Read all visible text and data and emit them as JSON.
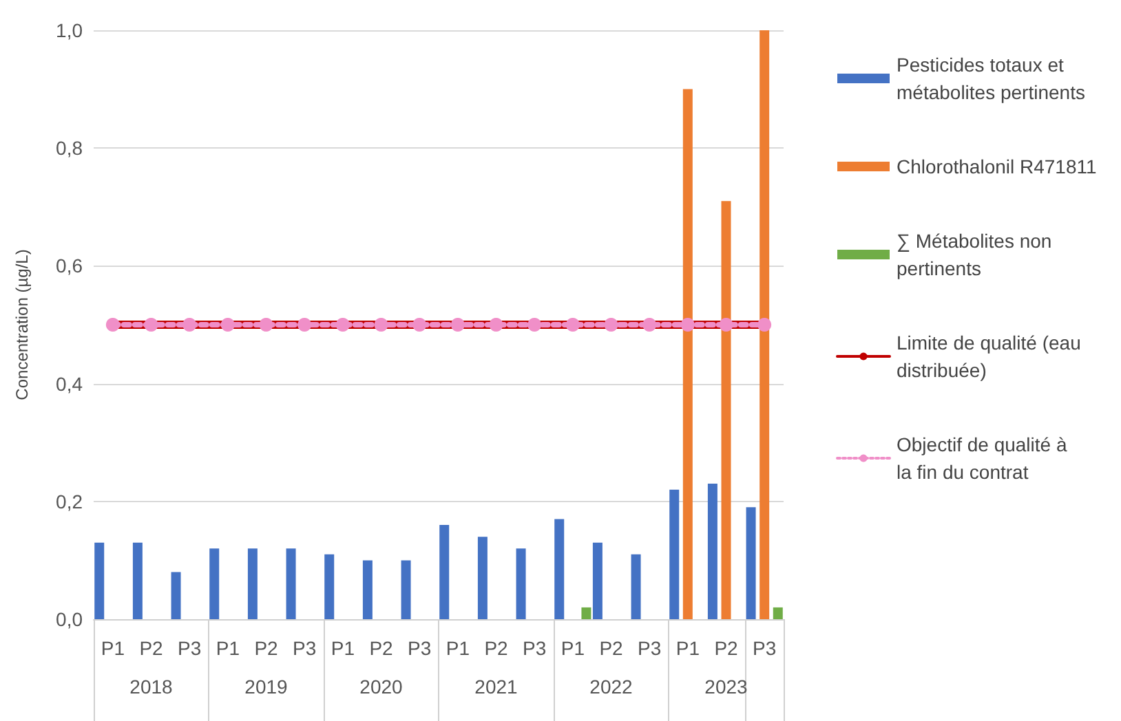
{
  "chart_data": {
    "type": "bar",
    "ylabel": "Concentration (µg/L)",
    "categories": [
      "P1",
      "P2",
      "P3",
      "P1",
      "P2",
      "P3",
      "P1",
      "P2",
      "P3",
      "P1",
      "P2",
      "P3",
      "P1",
      "P2",
      "P3",
      "P1",
      "P2",
      "P3"
    ],
    "annotations": [
      "2018",
      "2019",
      "2020",
      "2021",
      "2022",
      "2023"
    ],
    "series": [
      {
        "name": "Pesticides totaux et métabolites pertinents",
        "color": "#4472c4",
        "values": [
          0.13,
          0.13,
          0.08,
          0.12,
          0.12,
          0.12,
          0.11,
          0.1,
          0.1,
          0.16,
          0.14,
          0.12,
          0.17,
          0.13,
          0.11,
          0.22,
          0.23,
          0.19
        ]
      },
      {
        "name": "Chlorothalonil R471811",
        "color": "#ed7d31",
        "values": [
          null,
          null,
          null,
          null,
          null,
          null,
          null,
          null,
          null,
          null,
          null,
          null,
          null,
          null,
          null,
          0.9,
          0.71,
          1.0
        ]
      },
      {
        "name": "∑ Métabolites non pertinents",
        "color": "#70ad47",
        "values": [
          null,
          null,
          null,
          null,
          null,
          null,
          null,
          null,
          null,
          null,
          null,
          null,
          0.02,
          null,
          null,
          null,
          null,
          0.02
        ]
      },
      {
        "name": "Limite de qualité (eau distribuée)",
        "type": "line",
        "color": "#c00000",
        "line_style": "solid",
        "marker": "none",
        "values": [
          0.5,
          0.5,
          0.5,
          0.5,
          0.5,
          0.5,
          0.5,
          0.5,
          0.5,
          0.5,
          0.5,
          0.5,
          0.5,
          0.5,
          0.5,
          0.5,
          0.5,
          0.5
        ]
      },
      {
        "name": "Objectif de qualité à la fin du contrat",
        "type": "line",
        "color": "#f08fc8",
        "line_style": "dotted",
        "marker": "circle",
        "values": [
          0.5,
          0.5,
          0.5,
          0.5,
          0.5,
          0.5,
          0.5,
          0.5,
          0.5,
          0.5,
          0.5,
          0.5,
          0.5,
          0.5,
          0.5,
          0.5,
          0.5,
          0.5
        ]
      }
    ],
    "ylim": [
      0,
      1.0
    ],
    "yticks": [
      {
        "value": 0,
        "label": "0,0"
      },
      {
        "value": 0.2,
        "label": "0,2"
      },
      {
        "value": 0.4,
        "label": "0,4"
      },
      {
        "value": 0.6,
        "label": "0,6"
      },
      {
        "value": 0.8,
        "label": "0,8"
      },
      {
        "value": 1.0,
        "label": "1,0"
      }
    ],
    "grid": "y",
    "legend": "right"
  }
}
